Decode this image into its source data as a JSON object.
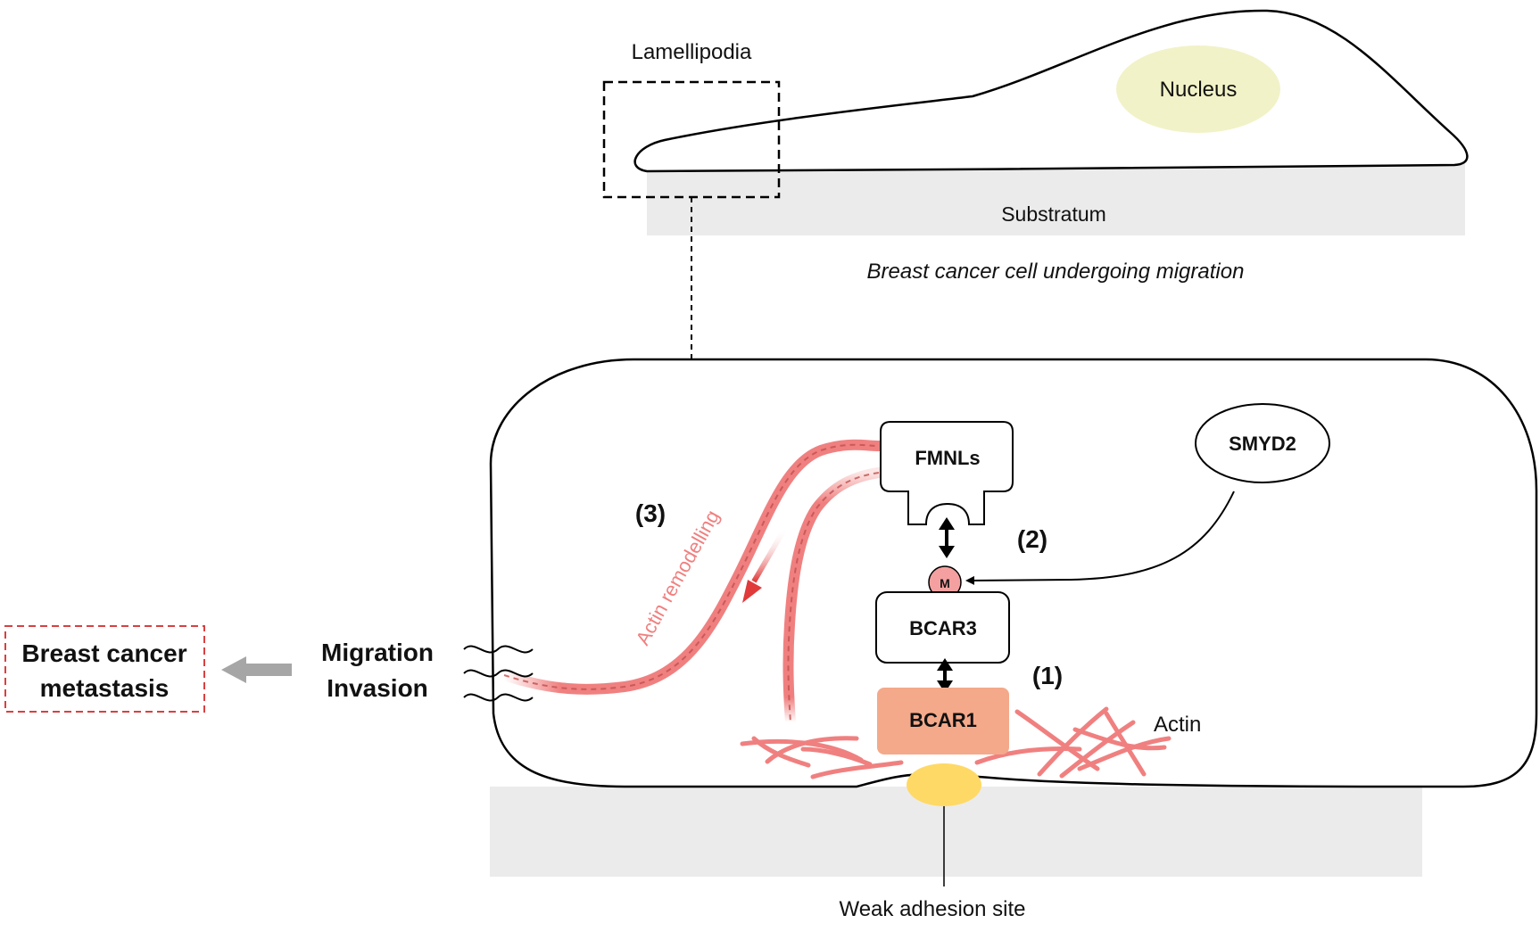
{
  "top_cell": {
    "lamellipodia_label": "Lamellipodia",
    "nucleus_label": "Nucleus",
    "substratum_label": "Substratum",
    "caption": "Breast cancer cell undergoing migration"
  },
  "zoom": {
    "fmnls_label": "FMNLs",
    "smyd2_label": "SMYD2",
    "methyl_label": "M",
    "bcar3_label": "BCAR3",
    "bcar1_label": "BCAR1",
    "step1_label": "(1)",
    "step2_label": "(2)",
    "step3_label": "(3)",
    "actin_remodelling_label": "Actin remodelling",
    "actin_label": "Actin",
    "weak_adhesion_label": "Weak adhesion site"
  },
  "outcome": {
    "migration_label": "Migration",
    "invasion_label": "Invasion",
    "metastasis_line1": "Breast cancer",
    "metastasis_line2": "metastasis"
  },
  "colors": {
    "actin": "#f08080",
    "actin_dark": "#c0504d",
    "bcar1_fill": "#f4a98a",
    "adhesion": "#ffd966",
    "nucleus": "#f2f2c8",
    "substrate": "#ebebeb",
    "metastasis_border": "#d94040",
    "arrow_grey": "#a6a6a6"
  }
}
